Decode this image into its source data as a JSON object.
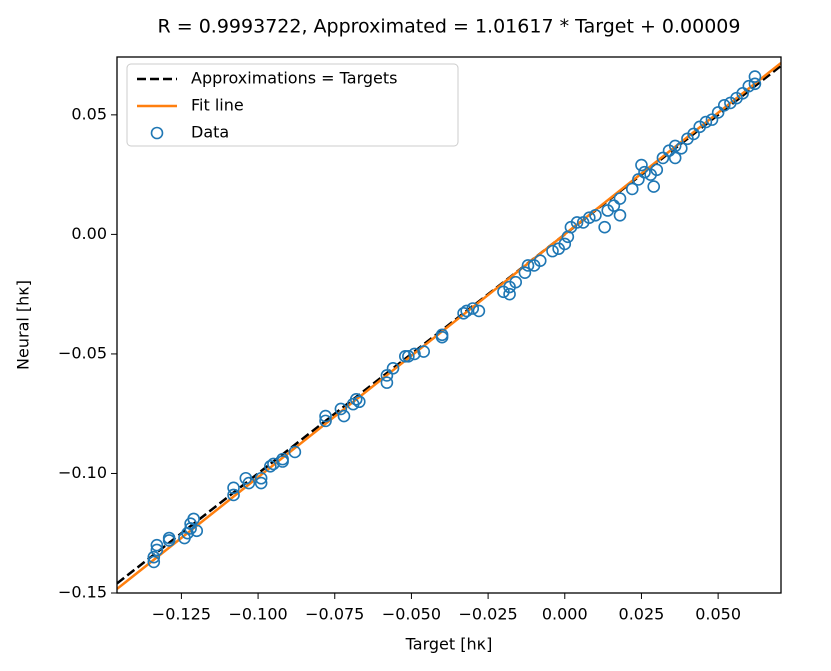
{
  "chart_data": {
    "type": "scatter",
    "title": "R = 0.9993722, Approximated = 1.01617 * Target + 0.00009",
    "x_label": "Target [hκ]",
    "y_label": "Neural [hκ]",
    "xlim": [
      -0.146,
      0.0705
    ],
    "ylim": [
      -0.15,
      0.0742
    ],
    "xticks": [
      {
        "value": -0.125,
        "label": "−0.125"
      },
      {
        "value": -0.1,
        "label": "−0.100"
      },
      {
        "value": -0.075,
        "label": "−0.075"
      },
      {
        "value": -0.05,
        "label": "−0.050"
      },
      {
        "value": -0.025,
        "label": "−0.025"
      },
      {
        "value": 0,
        "label": "0.000"
      },
      {
        "value": 0.025,
        "label": "0.025"
      },
      {
        "value": 0.05,
        "label": "0.050"
      }
    ],
    "yticks": [
      {
        "value": -0.15,
        "label": "−0.15"
      },
      {
        "value": -0.1,
        "label": "−0.10"
      },
      {
        "value": -0.05,
        "label": "−0.05"
      },
      {
        "value": 0,
        "label": "0.00"
      },
      {
        "value": 0.05,
        "label": "0.05"
      }
    ],
    "legend": "upper left",
    "series": [
      {
        "name": "Approximations = Targets",
        "kind": "line",
        "dash": true,
        "color": "#000000",
        "x": [
          -0.146,
          0.0705
        ],
        "values": [
          -0.146,
          0.0705
        ]
      },
      {
        "name": "Fit line",
        "kind": "line",
        "dash": false,
        "color": "#ff7f0e",
        "x": [
          -0.146,
          0.0705
        ],
        "values": [
          -0.1483,
          0.0717
        ]
      },
      {
        "name": "Data",
        "kind": "scatter",
        "color": "#1f77b4",
        "x": [
          -0.134,
          -0.134,
          -0.133,
          -0.133,
          -0.129,
          -0.129,
          -0.124,
          -0.123,
          -0.122,
          -0.122,
          -0.121,
          -0.12,
          -0.108,
          -0.108,
          -0.104,
          -0.103,
          -0.099,
          -0.099,
          -0.096,
          -0.095,
          -0.092,
          -0.092,
          -0.088,
          -0.078,
          -0.078,
          -0.073,
          -0.072,
          -0.069,
          -0.068,
          -0.067,
          -0.058,
          -0.058,
          -0.056,
          -0.052,
          -0.051,
          -0.049,
          -0.046,
          -0.04,
          -0.04,
          -0.033,
          -0.032,
          -0.03,
          -0.028,
          -0.02,
          -0.018,
          -0.018,
          -0.016,
          -0.013,
          -0.012,
          -0.01,
          -0.008,
          -0.004,
          -0.002,
          0.0,
          0.001,
          0.002,
          0.004,
          0.006,
          0.008,
          0.01,
          0.014,
          0.016,
          0.018,
          0.018,
          0.022,
          0.024,
          0.025,
          0.026,
          0.028,
          0.03,
          0.032,
          0.034,
          0.036,
          0.038,
          0.04,
          0.042,
          0.044,
          0.046,
          0.048,
          0.05,
          0.052,
          0.054,
          0.056,
          0.058,
          0.06,
          0.062,
          0.062,
          0.013,
          0.029,
          0.036
        ],
        "values": [
          -0.137,
          -0.135,
          -0.13,
          -0.132,
          -0.127,
          -0.128,
          -0.127,
          -0.125,
          -0.123,
          -0.121,
          -0.119,
          -0.124,
          -0.109,
          -0.106,
          -0.102,
          -0.104,
          -0.102,
          -0.104,
          -0.097,
          -0.096,
          -0.095,
          -0.094,
          -0.091,
          -0.076,
          -0.078,
          -0.073,
          -0.076,
          -0.071,
          -0.069,
          -0.07,
          -0.059,
          -0.062,
          -0.056,
          -0.051,
          -0.051,
          -0.05,
          -0.049,
          -0.042,
          -0.043,
          -0.033,
          -0.032,
          -0.031,
          -0.032,
          -0.024,
          -0.022,
          -0.025,
          -0.02,
          -0.016,
          -0.013,
          -0.013,
          -0.011,
          -0.007,
          -0.006,
          -0.004,
          -0.001,
          0.003,
          0.005,
          0.005,
          0.007,
          0.008,
          0.01,
          0.012,
          0.015,
          0.008,
          0.019,
          0.023,
          0.029,
          0.026,
          0.025,
          0.027,
          0.032,
          0.035,
          0.037,
          0.036,
          0.04,
          0.042,
          0.045,
          0.047,
          0.048,
          0.051,
          0.054,
          0.055,
          0.057,
          0.059,
          0.062,
          0.063,
          0.066,
          0.003,
          0.02,
          0.032
        ]
      }
    ]
  }
}
